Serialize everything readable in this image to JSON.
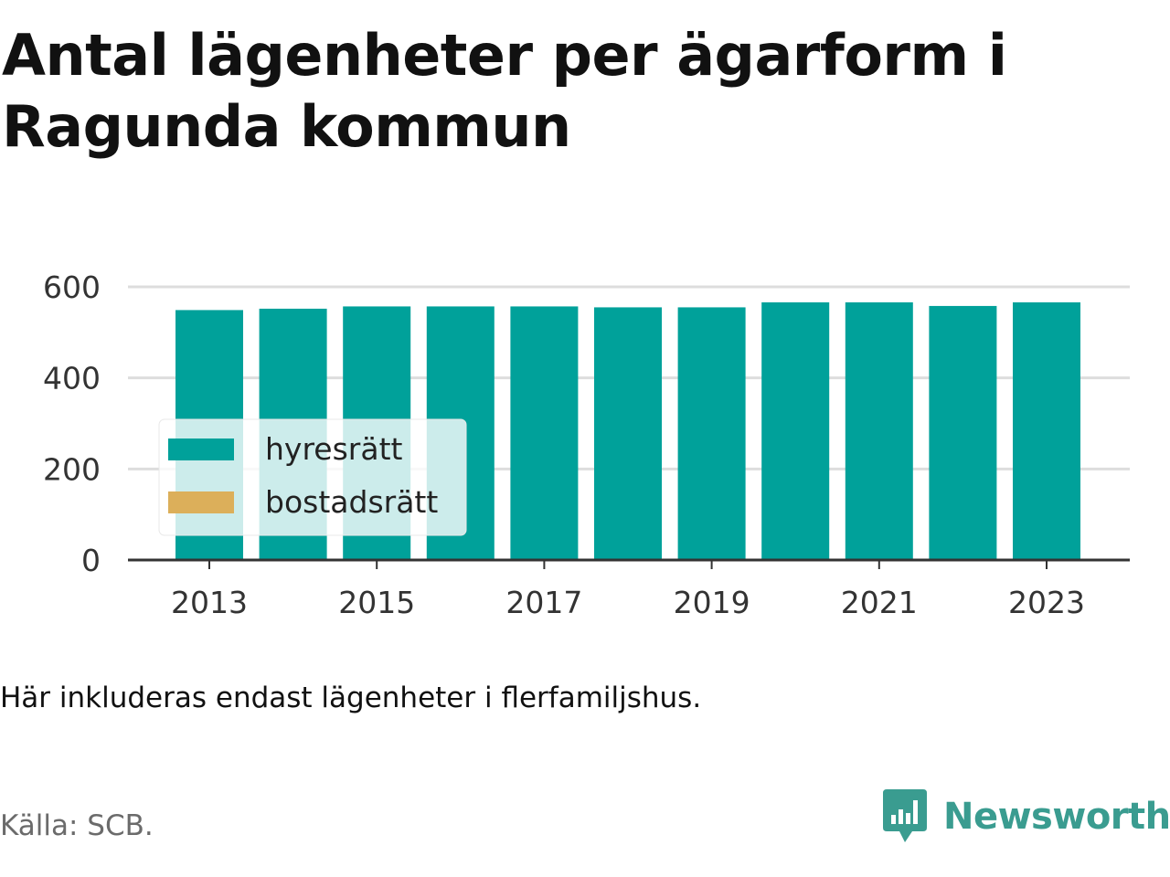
{
  "title": "Antal lägenheter per ägarform i Ragunda kommun",
  "note": "Här inkluderas endast lägenheter i flerfamiljshus.",
  "source": "Källa: SCB.",
  "brand": {
    "name": "Newsworthy",
    "icon": "newsworthy-logo-icon",
    "color": "#3a9c90"
  },
  "colors": {
    "hyresratt": "#00a19a",
    "bostadsratt": "#dcaf5a",
    "grid": "#dddddd",
    "axis": "#333333"
  },
  "chart_data": {
    "type": "bar",
    "stacked": true,
    "categories": [
      "2013",
      "2014",
      "2015",
      "2016",
      "2017",
      "2018",
      "2019",
      "2020",
      "2021",
      "2022",
      "2023"
    ],
    "x_tick_labels": [
      "2013",
      "2015",
      "2017",
      "2019",
      "2021",
      "2023"
    ],
    "series": [
      {
        "name": "hyresrätt",
        "color": "#00a19a",
        "values": [
          549,
          552,
          557,
          557,
          557,
          555,
          555,
          566,
          566,
          558,
          566
        ]
      },
      {
        "name": "bostadsrätt",
        "color": "#dcaf5a",
        "values": [
          0,
          0,
          0,
          0,
          0,
          0,
          0,
          0,
          0,
          0,
          0
        ]
      }
    ],
    "ylim": [
      0,
      600
    ],
    "yticks": [
      0,
      200,
      400,
      600
    ],
    "grid": true,
    "legend_position": "left-middle"
  }
}
